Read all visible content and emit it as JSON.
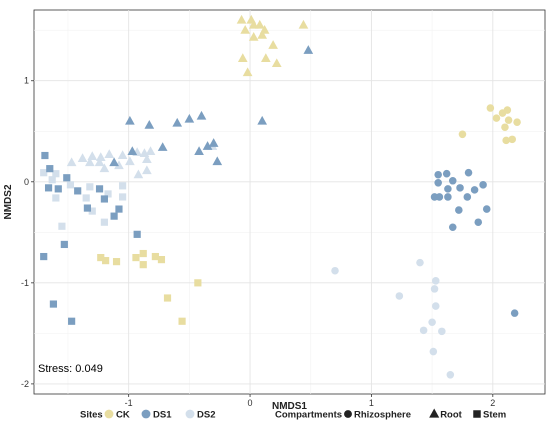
{
  "chart_data": {
    "type": "scatter",
    "xlabel": "NMDS1",
    "ylabel": "NMDS2",
    "xlim": [
      -1.78,
      2.43
    ],
    "ylim": [
      -2.1,
      1.7
    ],
    "x_ticks": [
      -1,
      0,
      1,
      2
    ],
    "y_ticks": [
      -2,
      -1,
      0,
      1
    ],
    "x_tick_labels": [
      "-1",
      "0",
      "1",
      "2"
    ],
    "y_tick_labels": [
      "-2",
      "-1",
      "0",
      "1"
    ],
    "grid": true,
    "annotation": "Stress: 0.049",
    "site_colors": {
      "CK": "#e8dda0",
      "DS1": "#7b9ec0",
      "DS2": "#d3dfeb"
    },
    "legend": {
      "sites_title": "Sites",
      "sites": [
        {
          "key": "CK",
          "label": "CK"
        },
        {
          "key": "DS1",
          "label": "DS1"
        },
        {
          "key": "DS2",
          "label": "DS2"
        }
      ],
      "compartments_title": "Compartments",
      "compartments": [
        {
          "key": "Rhizosphere",
          "label": "Rhizosphere",
          "shape": "circle"
        },
        {
          "key": "Root",
          "label": "Root",
          "shape": "triangle"
        },
        {
          "key": "Stem",
          "label": "Stem",
          "shape": "square"
        }
      ]
    },
    "series": [
      {
        "site": "CK",
        "compartment": "Root",
        "points": [
          [
            -0.07,
            1.6
          ],
          [
            0.01,
            1.6
          ],
          [
            0.03,
            1.55
          ],
          [
            0.08,
            1.55
          ],
          [
            0.12,
            1.5
          ],
          [
            -0.04,
            1.5
          ],
          [
            0.1,
            1.45
          ],
          [
            0.03,
            1.43
          ],
          [
            0.19,
            1.35
          ],
          [
            0.44,
            1.55
          ],
          [
            0.13,
            1.22
          ],
          [
            0.22,
            1.17
          ],
          [
            -0.06,
            1.22
          ],
          [
            -0.02,
            1.08
          ]
        ]
      },
      {
        "site": "CK",
        "compartment": "Rhizosphere",
        "points": [
          [
            1.98,
            0.73
          ],
          [
            2.08,
            0.68
          ],
          [
            2.12,
            0.71
          ],
          [
            2.03,
            0.63
          ],
          [
            2.13,
            0.61
          ],
          [
            2.2,
            0.59
          ],
          [
            2.1,
            0.54
          ],
          [
            1.75,
            0.47
          ],
          [
            2.16,
            0.42
          ],
          [
            2.11,
            0.41
          ]
        ]
      },
      {
        "site": "CK",
        "compartment": "Stem",
        "points": [
          [
            -1.23,
            -0.75
          ],
          [
            -1.19,
            -0.78
          ],
          [
            -1.1,
            -0.79
          ],
          [
            -0.94,
            -0.75
          ],
          [
            -0.88,
            -0.71
          ],
          [
            -0.78,
            -0.74
          ],
          [
            -0.73,
            -0.77
          ],
          [
            -0.88,
            -0.82
          ],
          [
            -0.43,
            -1.0
          ],
          [
            -0.68,
            -1.15
          ],
          [
            -0.56,
            -1.38
          ]
        ]
      },
      {
        "site": "DS1",
        "compartment": "Root",
        "points": [
          [
            -0.99,
            0.6
          ],
          [
            -0.83,
            0.56
          ],
          [
            -0.6,
            0.58
          ],
          [
            -0.5,
            0.62
          ],
          [
            -0.4,
            0.65
          ],
          [
            -0.3,
            0.38
          ],
          [
            -0.35,
            0.35
          ],
          [
            -0.42,
            0.3
          ],
          [
            -0.27,
            0.2
          ],
          [
            -0.72,
            0.34
          ],
          [
            -0.97,
            0.3
          ],
          [
            -1.12,
            0.19
          ],
          [
            0.1,
            0.6
          ],
          [
            0.48,
            1.3
          ]
        ]
      },
      {
        "site": "DS1",
        "compartment": "Rhizosphere",
        "points": [
          [
            1.55,
            0.07
          ],
          [
            1.62,
            0.08
          ],
          [
            1.8,
            0.09
          ],
          [
            1.67,
            0.01
          ],
          [
            1.73,
            -0.06
          ],
          [
            1.55,
            -0.01
          ],
          [
            1.63,
            -0.07
          ],
          [
            1.52,
            -0.15
          ],
          [
            1.56,
            -0.15
          ],
          [
            1.63,
            -0.15
          ],
          [
            1.85,
            -0.08
          ],
          [
            1.92,
            -0.03
          ],
          [
            1.79,
            -0.15
          ],
          [
            1.95,
            -0.27
          ],
          [
            1.72,
            -0.28
          ],
          [
            1.88,
            -0.4
          ],
          [
            1.67,
            -0.45
          ],
          [
            2.18,
            -1.3
          ]
        ]
      },
      {
        "site": "DS1",
        "compartment": "Stem",
        "points": [
          [
            -1.69,
            0.26
          ],
          [
            -1.65,
            0.13
          ],
          [
            -1.51,
            0.04
          ],
          [
            -1.66,
            -0.06
          ],
          [
            -1.58,
            -0.07
          ],
          [
            -1.42,
            -0.09
          ],
          [
            -1.24,
            -0.07
          ],
          [
            -1.2,
            -0.17
          ],
          [
            -1.08,
            -0.27
          ],
          [
            -1.34,
            -0.26
          ],
          [
            -1.12,
            -0.34
          ],
          [
            -0.93,
            -0.52
          ],
          [
            -1.53,
            -0.62
          ],
          [
            -1.7,
            -0.74
          ],
          [
            -1.62,
            -1.21
          ],
          [
            -1.47,
            -1.38
          ]
        ]
      },
      {
        "site": "DS2",
        "compartment": "Root",
        "points": [
          [
            -1.38,
            0.23
          ],
          [
            -1.3,
            0.25
          ],
          [
            -1.23,
            0.24
          ],
          [
            -1.16,
            0.27
          ],
          [
            -1.05,
            0.26
          ],
          [
            -0.93,
            0.29
          ],
          [
            -0.87,
            0.28
          ],
          [
            -0.82,
            0.3
          ],
          [
            -0.85,
            0.22
          ],
          [
            -0.99,
            0.2
          ],
          [
            -1.08,
            0.16
          ],
          [
            -1.24,
            0.19
          ],
          [
            -1.32,
            0.19
          ],
          [
            -1.47,
            0.19
          ],
          [
            -1.2,
            0.13
          ],
          [
            -0.92,
            0.07
          ],
          [
            -0.85,
            0.11
          ],
          [
            -0.31,
            0.35
          ]
        ]
      },
      {
        "site": "DS2",
        "compartment": "Rhizosphere",
        "points": [
          [
            0.7,
            -0.88
          ],
          [
            1.4,
            -0.8
          ],
          [
            1.53,
            -0.98
          ],
          [
            1.23,
            -1.13
          ],
          [
            1.52,
            -1.06
          ],
          [
            1.53,
            -1.23
          ],
          [
            1.5,
            -1.39
          ],
          [
            1.43,
            -1.47
          ],
          [
            1.58,
            -1.48
          ],
          [
            1.51,
            -1.68
          ],
          [
            1.65,
            -1.91
          ]
        ]
      },
      {
        "site": "DS2",
        "compartment": "Stem",
        "points": [
          [
            -1.7,
            0.09
          ],
          [
            -1.6,
            0.08
          ],
          [
            -1.63,
            0.02
          ],
          [
            -1.48,
            -0.03
          ],
          [
            -1.32,
            -0.05
          ],
          [
            -1.6,
            -0.16
          ],
          [
            -1.35,
            -0.16
          ],
          [
            -1.17,
            -0.12
          ],
          [
            -1.05,
            -0.04
          ],
          [
            -1.3,
            -0.29
          ],
          [
            -1.55,
            -0.44
          ],
          [
            -1.2,
            -0.4
          ],
          [
            -1.05,
            -0.15
          ]
        ]
      }
    ]
  }
}
